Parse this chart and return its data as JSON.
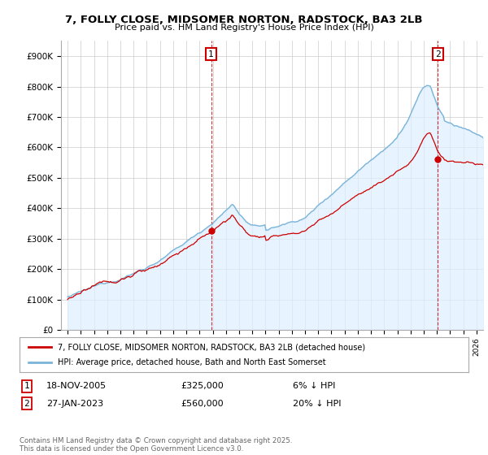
{
  "title": "7, FOLLY CLOSE, MIDSOMER NORTON, RADSTOCK, BA3 2LB",
  "subtitle": "Price paid vs. HM Land Registry's House Price Index (HPI)",
  "legend_line1": "7, FOLLY CLOSE, MIDSOMER NORTON, RADSTOCK, BA3 2LB (detached house)",
  "legend_line2": "HPI: Average price, detached house, Bath and North East Somerset",
  "sale1_label": "1",
  "sale1_date": "18-NOV-2005",
  "sale1_price": "£325,000",
  "sale1_note": "6% ↓ HPI",
  "sale2_label": "2",
  "sale2_date": "27-JAN-2023",
  "sale2_price": "£560,000",
  "sale2_note": "20% ↓ HPI",
  "footer": "Contains HM Land Registry data © Crown copyright and database right 2025.\nThis data is licensed under the Open Government Licence v3.0.",
  "hpi_color": "#7ab4d8",
  "hpi_fill_color": "#ddeeff",
  "price_color": "#cc0000",
  "sale1_x": 2005.88,
  "sale1_y": 325000,
  "sale2_x": 2023.07,
  "sale2_y": 560000,
  "ylim": [
    0,
    950000
  ],
  "xlim": [
    1994.5,
    2026.5
  ],
  "background_color": "#ffffff",
  "grid_color": "#cccccc"
}
